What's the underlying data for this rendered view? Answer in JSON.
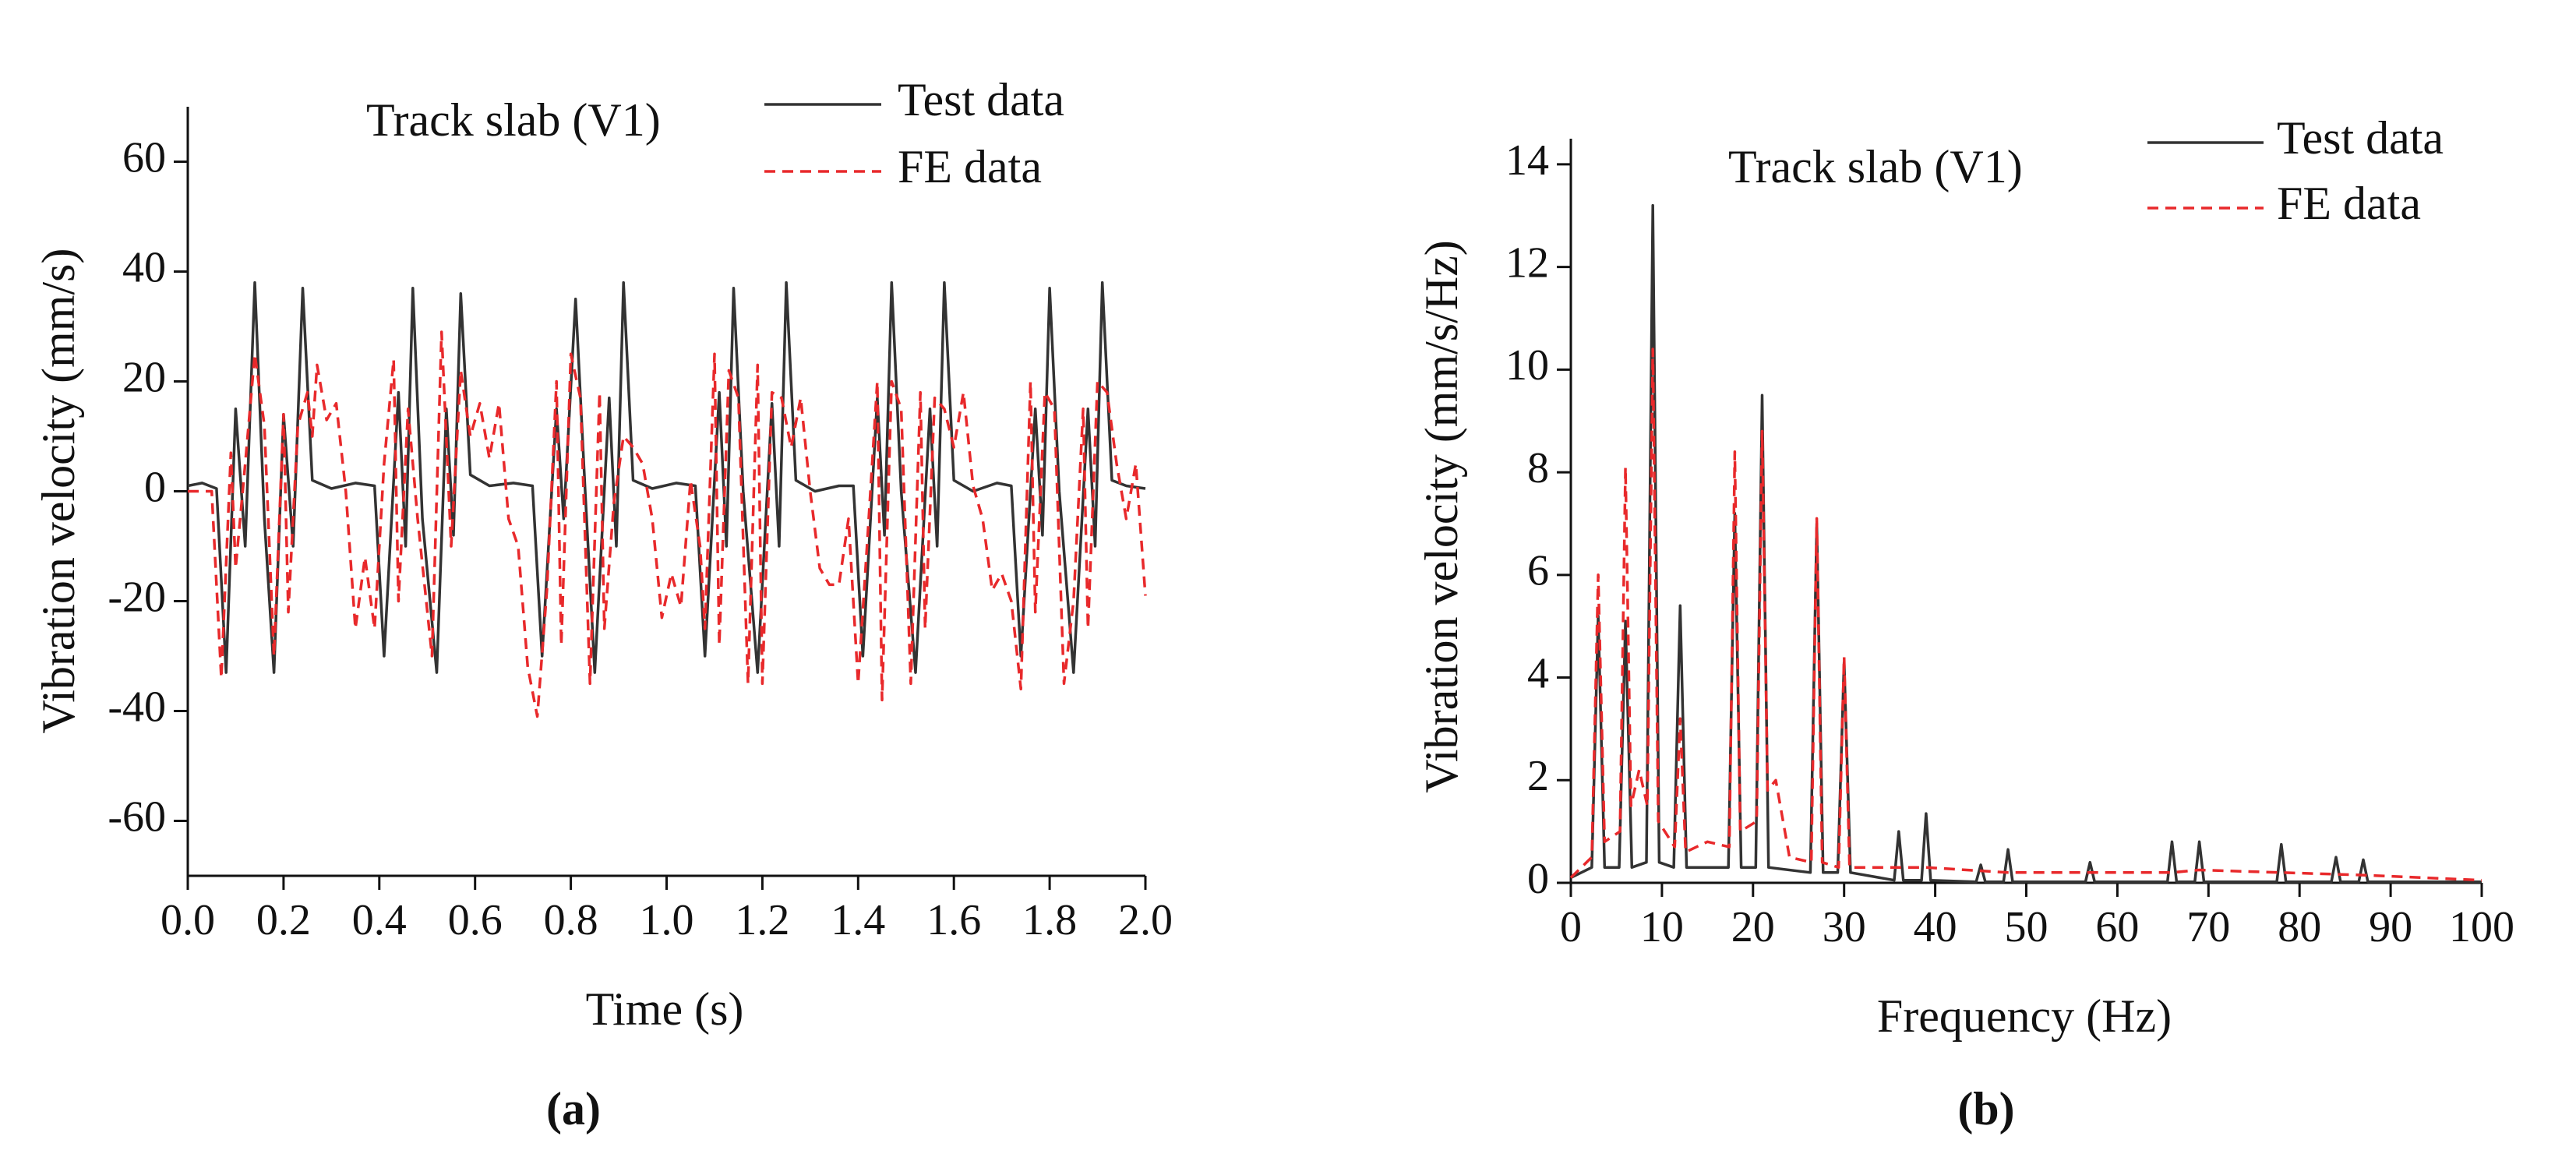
{
  "chart_data": [
    {
      "type": "line",
      "title": "Track slab (V1)",
      "x_label": "Time (s)",
      "y_label": "Vibration velocity (mm/s)",
      "caption": "(a)",
      "xlim": [
        0,
        2
      ],
      "ylim": [
        -70,
        70
      ],
      "xticks": [
        {
          "value": 0,
          "label": "0.0"
        },
        0.2,
        0.4,
        0.6,
        0.8,
        {
          "value": 1,
          "label": "1.0"
        },
        1.2,
        1.4,
        1.6,
        1.8,
        {
          "value": 2,
          "label": "2.0"
        }
      ],
      "yticks": [
        {
          "value": -60,
          "label": "-60"
        },
        {
          "value": -40,
          "label": "-40"
        },
        {
          "value": -20,
          "label": "-20"
        },
        0,
        20,
        40,
        60
      ],
      "series": [
        {
          "name": "Test data",
          "color": "#333333",
          "line_style": "solid",
          "x": [
            0.0,
            0.03,
            0.06,
            0.08,
            0.1,
            0.12,
            0.14,
            0.16,
            0.18,
            0.2,
            0.22,
            0.24,
            0.26,
            0.3,
            0.35,
            0.39,
            0.41,
            0.44,
            0.455,
            0.47,
            0.49,
            0.52,
            0.54,
            0.555,
            0.57,
            0.59,
            0.63,
            0.68,
            0.72,
            0.74,
            0.77,
            0.785,
            0.81,
            0.83,
            0.85,
            0.88,
            0.895,
            0.91,
            0.93,
            0.97,
            1.02,
            1.06,
            1.08,
            1.11,
            1.125,
            1.14,
            1.16,
            1.19,
            1.22,
            1.235,
            1.25,
            1.27,
            1.31,
            1.36,
            1.39,
            1.41,
            1.44,
            1.455,
            1.47,
            1.49,
            1.52,
            1.55,
            1.565,
            1.58,
            1.6,
            1.64,
            1.69,
            1.72,
            1.74,
            1.77,
            1.785,
            1.8,
            1.82,
            1.85,
            1.88,
            1.895,
            1.91,
            1.93,
            1.96,
            2.0
          ],
          "values": [
            1,
            1.5,
            0.5,
            -33,
            15,
            -10,
            38,
            -5,
            -33,
            14,
            -10,
            37,
            2,
            0.5,
            1.5,
            1,
            -30,
            18,
            -10,
            37,
            -5,
            -33,
            15,
            -8,
            36,
            3,
            1,
            1.5,
            1,
            -30,
            15,
            -5,
            35,
            0,
            -33,
            17,
            -10,
            38,
            2,
            0.5,
            1.5,
            1,
            -30,
            18,
            -10,
            37,
            0,
            -33,
            16,
            -10,
            38,
            2,
            0,
            1,
            1,
            -30,
            17,
            -8,
            38,
            0,
            -33,
            15,
            -10,
            38,
            2,
            0,
            1.5,
            1,
            -30,
            15,
            -8,
            37,
            0,
            -33,
            15,
            -10,
            38,
            2,
            1,
            0.5
          ]
        },
        {
          "name": "FE data",
          "color": "#e8292b",
          "line_style": "dashed",
          "x": [
            0.0,
            0.05,
            0.07,
            0.09,
            0.1,
            0.12,
            0.14,
            0.16,
            0.18,
            0.2,
            0.21,
            0.23,
            0.25,
            0.26,
            0.27,
            0.29,
            0.31,
            0.33,
            0.35,
            0.37,
            0.39,
            0.41,
            0.43,
            0.44,
            0.46,
            0.48,
            0.51,
            0.53,
            0.55,
            0.57,
            0.59,
            0.61,
            0.63,
            0.65,
            0.67,
            0.69,
            0.71,
            0.73,
            0.75,
            0.77,
            0.78,
            0.8,
            0.82,
            0.84,
            0.86,
            0.87,
            0.89,
            0.91,
            0.93,
            0.95,
            0.97,
            0.99,
            1.01,
            1.03,
            1.05,
            1.07,
            1.08,
            1.1,
            1.11,
            1.13,
            1.15,
            1.17,
            1.19,
            1.2,
            1.22,
            1.24,
            1.26,
            1.28,
            1.3,
            1.32,
            1.34,
            1.36,
            1.38,
            1.4,
            1.42,
            1.44,
            1.45,
            1.47,
            1.49,
            1.51,
            1.53,
            1.54,
            1.56,
            1.58,
            1.6,
            1.62,
            1.64,
            1.66,
            1.68,
            1.7,
            1.72,
            1.74,
            1.76,
            1.77,
            1.79,
            1.81,
            1.83,
            1.85,
            1.87,
            1.88,
            1.9,
            1.92,
            1.94,
            1.96,
            1.98,
            2.0
          ],
          "values": [
            0,
            0,
            -34,
            7,
            -14,
            5,
            25,
            12,
            -30,
            14,
            -22,
            12,
            18,
            10,
            23,
            13,
            16,
            0,
            -25,
            -12,
            -25,
            5,
            24,
            -20,
            15,
            -5,
            -30,
            29,
            -10,
            22,
            10,
            16,
            6,
            16,
            -5,
            -10,
            -32,
            -41,
            -18,
            20,
            -28,
            25,
            17,
            -35,
            18,
            -25,
            -2,
            10,
            8,
            5,
            -5,
            -23,
            -15,
            -21,
            2,
            -10,
            -25,
            25,
            -28,
            22,
            17,
            -35,
            23,
            -35,
            18,
            17,
            8,
            17,
            0,
            -14,
            -17,
            -17,
            -5,
            -35,
            -8,
            20,
            -38,
            20,
            15,
            -35,
            18,
            -25,
            17,
            15,
            8,
            18,
            1,
            -5,
            -18,
            -15,
            -20,
            -36,
            20,
            -22,
            18,
            15,
            -35,
            -20,
            15,
            -25,
            20,
            18,
            5,
            -5,
            5,
            -19
          ]
        }
      ]
    },
    {
      "type": "line",
      "title": "Track slab (V1)",
      "x_label": "Frequency (Hz)",
      "y_label": "Vibration velocity (mm/s/Hz)",
      "caption": "(b)",
      "xlim": [
        0,
        100
      ],
      "ylim": [
        0,
        14.5
      ],
      "xticks": [
        0,
        10,
        20,
        30,
        40,
        50,
        60,
        70,
        80,
        90,
        100
      ],
      "yticks": [
        0,
        2,
        4,
        6,
        8,
        10,
        12,
        14
      ],
      "series": [
        {
          "name": "Test data",
          "color": "#333333",
          "line_style": "solid",
          "x": [
            0,
            2.3,
            3,
            3.7,
            5.3,
            6,
            6.7,
            8.3,
            9,
            9.7,
            11.3,
            12,
            12.7,
            17.3,
            18,
            18.7,
            20.3,
            21,
            21.7,
            26.3,
            27,
            27.7,
            29.3,
            30,
            30.7,
            35.5,
            36,
            36.5,
            38.5,
            39,
            39.5,
            44.5,
            45,
            45.5,
            47.5,
            48,
            48.5,
            56.5,
            57,
            57.5,
            65.5,
            66,
            66.5,
            68.5,
            69,
            69.5,
            77.5,
            78,
            78.5,
            83.5,
            84,
            84.5,
            86.5,
            87,
            87.5,
            100
          ],
          "values": [
            0.1,
            0.3,
            5.2,
            0.3,
            0.3,
            5.1,
            0.3,
            0.4,
            13.2,
            0.4,
            0.3,
            5.4,
            0.3,
            0.3,
            7.2,
            0.3,
            0.3,
            9.5,
            0.3,
            0.2,
            7.0,
            0.2,
            0.2,
            4.3,
            0.2,
            0.05,
            1.0,
            0.05,
            0.05,
            1.35,
            0.05,
            0.02,
            0.35,
            0.02,
            0.02,
            0.65,
            0.02,
            0.02,
            0.4,
            0.02,
            0.02,
            0.8,
            0.02,
            0.02,
            0.8,
            0.02,
            0.02,
            0.75,
            0.02,
            0.02,
            0.5,
            0.02,
            0.02,
            0.45,
            0.02,
            0.02
          ]
        },
        {
          "name": "FE data",
          "color": "#e8292b",
          "line_style": "dashed",
          "x": [
            0,
            2.3,
            3,
            3.7,
            5.4,
            6,
            6.6,
            7.5,
            8.4,
            9,
            9.6,
            11.4,
            12,
            12.6,
            15,
            17.4,
            18,
            18.6,
            20.4,
            21,
            21.6,
            22.5,
            24,
            26.4,
            27,
            27.6,
            29.4,
            30,
            30.6,
            33,
            39,
            48,
            57,
            66,
            69,
            78,
            87,
            100
          ],
          "values": [
            0.1,
            0.5,
            6.0,
            0.8,
            1.0,
            8.1,
            1.5,
            2.2,
            1.5,
            10.4,
            1.2,
            0.7,
            3.2,
            0.6,
            0.8,
            0.7,
            8.4,
            1.0,
            1.2,
            8.8,
            1.8,
            2.0,
            0.5,
            0.4,
            7.1,
            0.4,
            0.3,
            4.4,
            0.3,
            0.3,
            0.3,
            0.2,
            0.2,
            0.2,
            0.25,
            0.2,
            0.15,
            0.05
          ]
        }
      ]
    }
  ]
}
